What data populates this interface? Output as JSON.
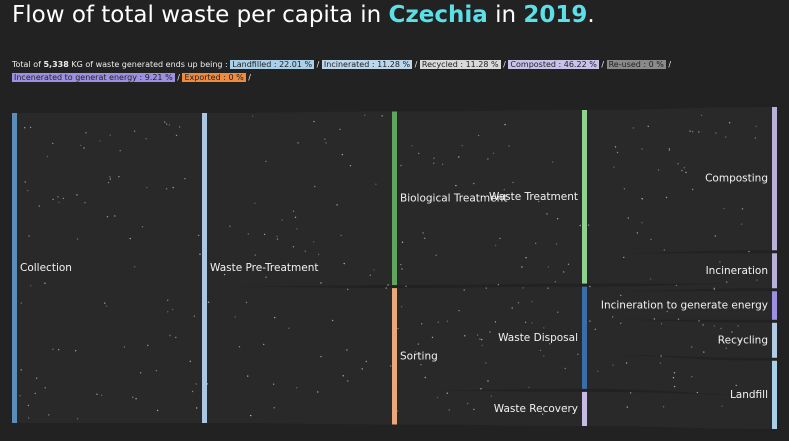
{
  "chart_data": {
    "type": "sankey",
    "title": {
      "before": "Flow of total waste per capita in",
      "country": "Czechia",
      "middle": "in",
      "year": "2019",
      "end": "."
    },
    "summary": {
      "before": "Total of",
      "total": "5,338",
      "after": "KG of waste generated ends up being :",
      "separator": "/",
      "items": [
        {
          "text": "Landfilled : 22.01 %",
          "value": 22.01,
          "color": "#a9cfe9"
        },
        {
          "text": "Incinerated : 11.28 %",
          "value": 11.28,
          "color": "#bcd6ec"
        },
        {
          "text": "Recycled : 11.28 %",
          "value": 11.28,
          "color": "#d9d9d9"
        },
        {
          "text": "Composted : 46.22 %",
          "value": 46.22,
          "color": "#c9c1ea"
        },
        {
          "text": "Re-used : 0 %",
          "value": 0,
          "color": "#8a8a8a"
        },
        {
          "text": "Incenerated to generat energy : 9.21 %",
          "value": 9.21,
          "color": "#9d90e2"
        },
        {
          "text": "Exported : 0 %",
          "value": 0,
          "color": "#f08a3c"
        }
      ]
    },
    "nodes": [
      {
        "name": "Collection",
        "column": 0,
        "value": 100,
        "color": "#5b8db8"
      },
      {
        "name": "Waste Pre-Treatment",
        "column": 1,
        "value": 100,
        "color": "#a9c6e2"
      },
      {
        "name": "Biological Treatment",
        "column": 2,
        "value": 56,
        "color": "#5fa45f"
      },
      {
        "name": "Sorting",
        "column": 2,
        "value": 44,
        "color": "#e8a87c"
      },
      {
        "name": "Waste Treatment",
        "column": 3,
        "value": 56,
        "color": "#8fd18f"
      },
      {
        "name": "Waste Disposal",
        "column": 3,
        "value": 33,
        "color": "#3a6ea8"
      },
      {
        "name": "Waste Recovery",
        "column": 3,
        "value": 11,
        "color": "#c6bbe3"
      },
      {
        "name": "Composting",
        "column": 4,
        "value": 46.22,
        "color": "#b9b1da"
      },
      {
        "name": "Incineration",
        "column": 4,
        "value": 11.28,
        "color": "#b9b1da"
      },
      {
        "name": "Incineration to generate energy",
        "column": 4,
        "value": 9.21,
        "color": "#9d90e2"
      },
      {
        "name": "Recycling",
        "column": 4,
        "value": 11.28,
        "color": "#b2cbe4"
      },
      {
        "name": "Landfill",
        "column": 4,
        "value": 22.01,
        "color": "#a9cfe9"
      }
    ]
  }
}
